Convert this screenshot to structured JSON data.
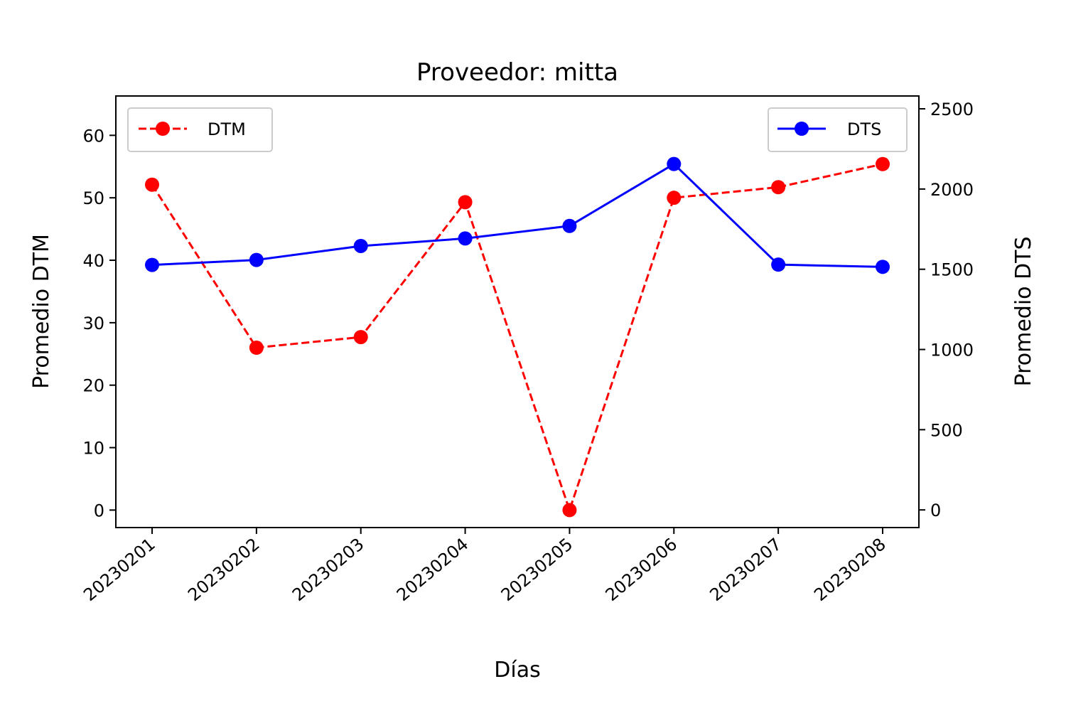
{
  "chart_data": {
    "type": "line",
    "title": "Proveedor: mitta",
    "xlabel": "Días",
    "ylabel_left": "Promedio DTM",
    "ylabel_right": "Promedio DTS",
    "categories": [
      "20230201",
      "20230202",
      "20230203",
      "20230204",
      "20230205",
      "20230206",
      "20230207",
      "20230208"
    ],
    "y_left": {
      "lim": [
        -2.8,
        66.3
      ],
      "ticks": [
        0,
        10,
        20,
        30,
        40,
        50,
        60
      ]
    },
    "y_right": {
      "lim": [
        -110,
        2580
      ],
      "ticks": [
        0,
        500,
        1000,
        1500,
        2000,
        2500
      ]
    },
    "series": [
      {
        "name": "DTM",
        "axis": "left",
        "color": "#ff0000",
        "line_style": "dashed",
        "marker": "circle",
        "legend_position": "top-left",
        "values": [
          52.1,
          26.0,
          27.7,
          49.3,
          0.0,
          50.0,
          51.7,
          55.4
        ]
      },
      {
        "name": "DTS",
        "axis": "right",
        "color": "#0000ff",
        "line_style": "solid",
        "marker": "circle",
        "legend_position": "top-right",
        "values": [
          1527,
          1558,
          1645,
          1692,
          1770,
          2156,
          1529,
          1515
        ]
      }
    ]
  }
}
